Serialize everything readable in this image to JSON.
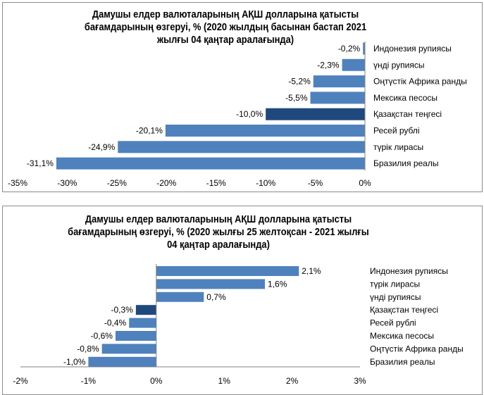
{
  "chart_data": [
    {
      "type": "bar",
      "orientation": "horizontal",
      "title_lines": [
        "Дамушы елдер валюталарының АҚШ долларына қатысты",
        "бағамдарының өзгеруі, %  (2020 жылдың басынан бастап 2021",
        "жылғы 04 қаңтар аралағында)"
      ],
      "categories": [
        "Индонезия рупиясы",
        "үнді рупиясы",
        "Оңтүстік Африка ранды",
        "Мексика песосы",
        "Қазақстан теңгесі",
        "Ресей рублі",
        "түрік лирасы",
        "Бразилия реалы"
      ],
      "values": [
        -0.2,
        -2.3,
        -5.2,
        -5.5,
        -10.0,
        -20.1,
        -24.9,
        -31.1
      ],
      "data_labels": [
        "-0,2%",
        "-2,3%",
        "-5,2%",
        "-5,5%",
        "-10,0%",
        "-20,1%",
        "-24,9%",
        "-31,1%"
      ],
      "highlight_index": 4,
      "xlim": [
        -35,
        0
      ],
      "x_ticks": [
        -35,
        -30,
        -25,
        -20,
        -15,
        -10,
        -5,
        0
      ],
      "x_tick_labels": [
        "-35%",
        "-30%",
        "-25%",
        "-20%",
        "-15%",
        "-10%",
        "-5%",
        "0%"
      ],
      "xlabel": "",
      "ylabel": "",
      "grid": false,
      "legend": "none",
      "colors": {
        "bar": "#4f81bd",
        "highlight": "#1f497d"
      }
    },
    {
      "type": "bar",
      "orientation": "horizontal",
      "title_lines": [
        "Дамушы елдер валюталарының АҚШ долларына қатысты",
        "бағамдарының өзгеруі, %  (2020 жылғы 25 желтоқсан - 2021 жылғы",
        "04 қаңтар аралағында)"
      ],
      "categories": [
        "Индонезия рупиясы",
        "түрік лирасы",
        "үнді рупиясы",
        "Қазақстан теңгесі",
        "Ресей рублі",
        "Мексика песосы",
        "Оңтүстік Африка ранды",
        "Бразилия реалы"
      ],
      "values": [
        2.1,
        1.6,
        0.7,
        -0.3,
        -0.4,
        -0.6,
        -0.8,
        -1.0
      ],
      "data_labels": [
        "2,1%",
        "1,6%",
        "0,7%",
        "-0,3%",
        "-0,4%",
        "-0,6%",
        "-0,8%",
        "-1,0%"
      ],
      "highlight_index": 3,
      "xlim": [
        -2,
        3
      ],
      "x_ticks": [
        -2,
        -1,
        0,
        1,
        2,
        3
      ],
      "x_tick_labels": [
        "-2%",
        "-1%",
        "0%",
        "1%",
        "2%",
        "3%"
      ],
      "xlabel": "",
      "ylabel": "",
      "grid": false,
      "legend": "none",
      "colors": {
        "bar": "#4f81bd",
        "highlight": "#1f497d"
      }
    }
  ]
}
